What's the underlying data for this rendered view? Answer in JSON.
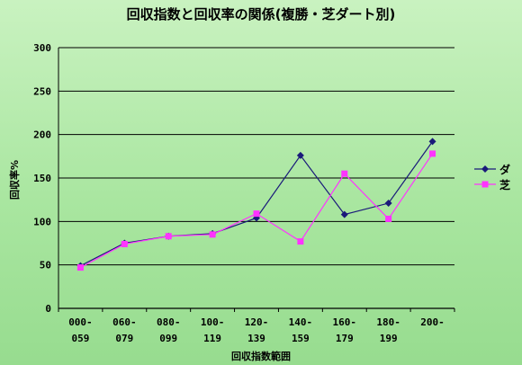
{
  "chart_data": {
    "type": "line",
    "title": "回収指数と回収率の関係(複勝・芝ダート別)",
    "xlabel": "回収指数範囲",
    "ylabel": "回収率%",
    "categories": [
      [
        "000-",
        "059"
      ],
      [
        "060-",
        "079"
      ],
      [
        "080-",
        "099"
      ],
      [
        "100-",
        "119"
      ],
      [
        "120-",
        "139"
      ],
      [
        "140-",
        "159"
      ],
      [
        "160-",
        "179"
      ],
      [
        "180-",
        "199"
      ],
      [
        "200-",
        ""
      ]
    ],
    "ylim": [
      0,
      300
    ],
    "yticks": [
      "0",
      "50",
      "100",
      "150",
      "200",
      "250",
      "300"
    ],
    "grid": true,
    "legend_position": "right",
    "series": [
      {
        "name": "ダ",
        "color": "#1a1a7a",
        "marker": "diamond",
        "values": [
          49,
          75,
          83,
          86,
          104,
          176,
          108,
          121,
          192
        ]
      },
      {
        "name": "芝",
        "color": "#ff33ff",
        "marker": "square",
        "values": [
          47,
          74,
          83,
          85,
          109,
          77,
          155,
          103,
          178
        ]
      }
    ]
  }
}
